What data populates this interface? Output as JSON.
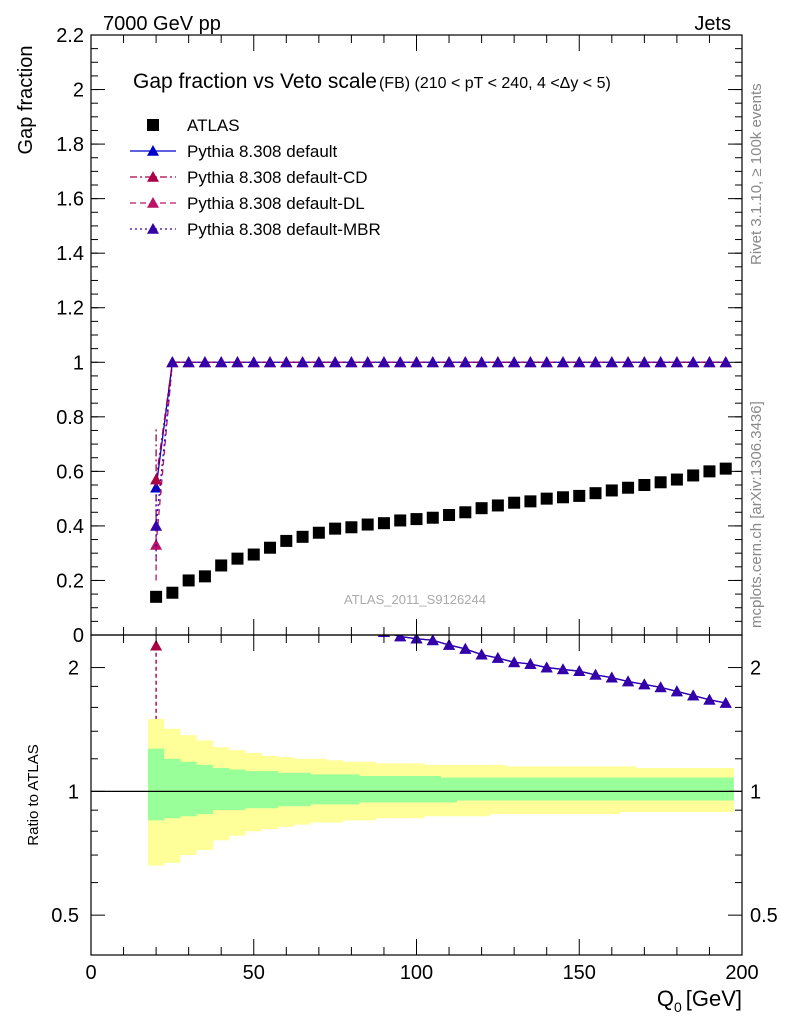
{
  "header": {
    "left": "7000 GeV pp",
    "right": "Jets"
  },
  "side_labels": {
    "rivet": "Rivet 3.1.10, ≥ 100k events",
    "mcplots": "mcplots.cern.ch [arXiv:1306.3436]"
  },
  "watermark": "ATLAS_2011_S9126244",
  "colors": {
    "atlas": "#000000",
    "default": "#0000cc",
    "cd": "#aa0044",
    "dl": "#bb1166",
    "mbr": "#3300aa",
    "band_inner": "#99ff99",
    "band_outer": "#ffff99"
  },
  "chart_data": [
    {
      "type": "scatter",
      "title": "Gap fraction vs Veto scale",
      "subtitle": "(FB) (210 < pT < 240, 4 <Δy < 5)",
      "ylabel": "Gap fraction",
      "xlim": [
        0,
        200
      ],
      "ylim": [
        0,
        2.2
      ],
      "yticks": [
        "0",
        "0.2",
        "0.4",
        "0.6",
        "0.8",
        "1",
        "1.2",
        "1.4",
        "1.6",
        "1.8",
        "2",
        "2.2"
      ],
      "legend_position": "top-left",
      "x": [
        20,
        25,
        30,
        35,
        40,
        45,
        50,
        55,
        60,
        65,
        70,
        75,
        80,
        85,
        90,
        95,
        100,
        105,
        110,
        115,
        120,
        125,
        130,
        135,
        140,
        145,
        150,
        155,
        160,
        165,
        170,
        175,
        180,
        185,
        190,
        195
      ],
      "series": [
        {
          "name": "ATLAS",
          "marker": "square",
          "values": [
            0.14,
            0.155,
            0.2,
            0.215,
            0.255,
            0.28,
            0.295,
            0.32,
            0.345,
            0.36,
            0.375,
            0.39,
            0.395,
            0.405,
            0.41,
            0.42,
            0.425,
            0.43,
            0.44,
            0.45,
            0.465,
            0.475,
            0.485,
            0.49,
            0.5,
            0.505,
            0.51,
            0.52,
            0.53,
            0.54,
            0.55,
            0.56,
            0.57,
            0.585,
            0.6,
            0.61
          ]
        },
        {
          "name": "Pythia 8.308 default",
          "marker": "triangle",
          "line": "solid",
          "values": [
            0.54,
            1.0,
            1.0,
            1.0,
            1.0,
            1.0,
            1.0,
            1.0,
            1.0,
            1.0,
            1.0,
            1.0,
            1.0,
            1.0,
            1.0,
            1.0,
            1.0,
            1.0,
            1.0,
            1.0,
            1.0,
            1.0,
            1.0,
            1.0,
            1.0,
            1.0,
            1.0,
            1.0,
            1.0,
            1.0,
            1.0,
            1.0,
            1.0,
            1.0,
            1.0,
            1.0
          ]
        },
        {
          "name": "Pythia 8.308 default-CD",
          "marker": "triangle",
          "line": "dashdot",
          "values": [
            0.57,
            1.0,
            1.0,
            1.0,
            1.0,
            1.0,
            1.0,
            1.0,
            1.0,
            1.0,
            1.0,
            1.0,
            1.0,
            1.0,
            1.0,
            1.0,
            1.0,
            1.0,
            1.0,
            1.0,
            1.0,
            1.0,
            1.0,
            1.0,
            1.0,
            1.0,
            1.0,
            1.0,
            1.0,
            1.0,
            1.0,
            1.0,
            1.0,
            1.0,
            1.0,
            1.0
          ],
          "yerr_first": 0.19
        },
        {
          "name": "Pythia 8.308 default-DL",
          "marker": "triangle",
          "line": "dashed",
          "values": [
            0.33,
            1.0,
            1.0,
            1.0,
            1.0,
            1.0,
            1.0,
            1.0,
            1.0,
            1.0,
            1.0,
            1.0,
            1.0,
            1.0,
            1.0,
            1.0,
            1.0,
            1.0,
            1.0,
            1.0,
            1.0,
            1.0,
            1.0,
            1.0,
            1.0,
            1.0,
            1.0,
            1.0,
            1.0,
            1.0,
            1.0,
            1.0,
            1.0,
            1.0,
            1.0,
            1.0
          ],
          "yerr_first": 0.13
        },
        {
          "name": "Pythia 8.308 default-MBR",
          "marker": "triangle",
          "line": "dotted",
          "values": [
            0.4,
            1.0,
            1.0,
            1.0,
            1.0,
            1.0,
            1.0,
            1.0,
            1.0,
            1.0,
            1.0,
            1.0,
            1.0,
            1.0,
            1.0,
            1.0,
            1.0,
            1.0,
            1.0,
            1.0,
            1.0,
            1.0,
            1.0,
            1.0,
            1.0,
            1.0,
            1.0,
            1.0,
            1.0,
            1.0,
            1.0,
            1.0,
            1.0,
            1.0,
            1.0,
            1.0
          ],
          "yerr_first": 0.13
        }
      ]
    },
    {
      "type": "line",
      "ylabel": "Ratio to ATLAS",
      "xlabel": "Q",
      "xlabel_sub": "0",
      "xlabel_unit": "[GeV]",
      "xlim": [
        0,
        200
      ],
      "ylim": [
        0.4,
        2.4
      ],
      "log_y": true,
      "xticks": [
        "0",
        "50",
        "100",
        "150",
        "200"
      ],
      "yticks": [
        "0.5",
        "1",
        "2"
      ],
      "x": [
        20,
        25,
        30,
        35,
        40,
        45,
        50,
        55,
        60,
        65,
        70,
        75,
        80,
        85,
        90,
        95,
        100,
        105,
        110,
        115,
        120,
        125,
        130,
        135,
        140,
        145,
        150,
        155,
        160,
        165,
        170,
        175,
        180,
        185,
        190,
        195
      ],
      "band_inner": {
        "lower": [
          0.85,
          0.86,
          0.87,
          0.88,
          0.9,
          0.9,
          0.91,
          0.91,
          0.92,
          0.92,
          0.93,
          0.93,
          0.93,
          0.94,
          0.94,
          0.94,
          0.94,
          0.94,
          0.94,
          0.95,
          0.95,
          0.95,
          0.95,
          0.95,
          0.95,
          0.95,
          0.95,
          0.95,
          0.95,
          0.95,
          0.95,
          0.95,
          0.95,
          0.95,
          0.95,
          0.95
        ],
        "upper": [
          1.27,
          1.2,
          1.18,
          1.16,
          1.14,
          1.13,
          1.12,
          1.12,
          1.11,
          1.11,
          1.1,
          1.1,
          1.1,
          1.09,
          1.09,
          1.09,
          1.09,
          1.09,
          1.08,
          1.08,
          1.08,
          1.08,
          1.08,
          1.08,
          1.08,
          1.08,
          1.08,
          1.08,
          1.08,
          1.08,
          1.08,
          1.08,
          1.08,
          1.08,
          1.08,
          1.08
        ]
      },
      "band_outer": {
        "lower": [
          0.66,
          0.67,
          0.7,
          0.72,
          0.76,
          0.78,
          0.8,
          0.81,
          0.82,
          0.83,
          0.84,
          0.84,
          0.85,
          0.85,
          0.86,
          0.86,
          0.86,
          0.87,
          0.87,
          0.87,
          0.87,
          0.88,
          0.88,
          0.88,
          0.88,
          0.88,
          0.88,
          0.88,
          0.88,
          0.89,
          0.89,
          0.89,
          0.89,
          0.89,
          0.89,
          0.89
        ],
        "upper": [
          1.5,
          1.42,
          1.37,
          1.33,
          1.28,
          1.26,
          1.24,
          1.22,
          1.21,
          1.2,
          1.2,
          1.19,
          1.18,
          1.18,
          1.17,
          1.17,
          1.17,
          1.16,
          1.16,
          1.16,
          1.16,
          1.16,
          1.15,
          1.15,
          1.15,
          1.15,
          1.15,
          1.15,
          1.15,
          1.15,
          1.14,
          1.14,
          1.14,
          1.14,
          1.14,
          1.14
        ]
      },
      "reference_line": 1,
      "series": [
        {
          "name": "Pythia 8.308 default",
          "x": [
            80,
            85,
            90,
            95,
            100,
            105,
            110,
            115,
            120,
            125,
            130,
            135,
            140,
            145,
            150,
            155,
            160,
            165,
            170,
            175,
            180,
            185,
            190,
            195
          ],
          "values": [
            2.53,
            2.47,
            2.44,
            2.38,
            2.35,
            2.33,
            2.27,
            2.22,
            2.15,
            2.11,
            2.06,
            2.04,
            2.0,
            1.98,
            1.96,
            1.92,
            1.89,
            1.85,
            1.82,
            1.79,
            1.75,
            1.71,
            1.67,
            1.64
          ]
        },
        {
          "name": "Pythia 8.308 default-MBR",
          "x": [
            80,
            85,
            90,
            95,
            100,
            105,
            110,
            115,
            120,
            125,
            130,
            135,
            140,
            145,
            150,
            155,
            160,
            165,
            170,
            175,
            180,
            185,
            190,
            195
          ],
          "values": [
            2.53,
            2.47,
            2.44,
            2.38,
            2.35,
            2.33,
            2.27,
            2.22,
            2.15,
            2.11,
            2.06,
            2.04,
            2.0,
            1.98,
            1.96,
            1.92,
            1.89,
            1.85,
            1.82,
            1.79,
            1.75,
            1.71,
            1.67,
            1.64
          ]
        },
        {
          "name": "Pythia 8.308 default-CD",
          "x": [
            20
          ],
          "values": [
            2.26
          ],
          "yerr_low": 0.76
        }
      ]
    }
  ]
}
